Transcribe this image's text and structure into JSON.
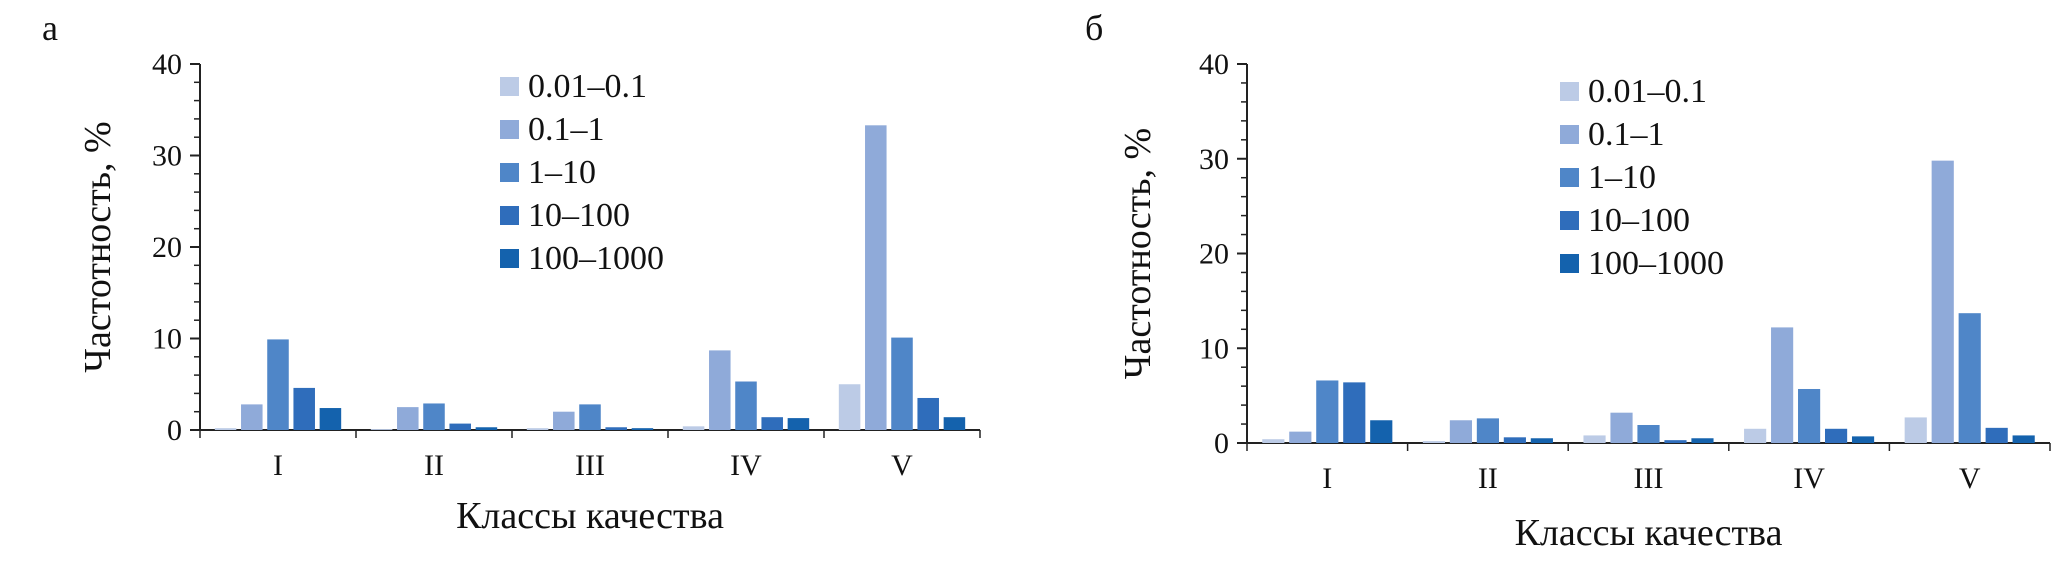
{
  "figure": {
    "colors": {
      "0.01–0.1": "#bccbe6",
      "0.1–1": "#8faad9",
      "1–10": "#4f86c8",
      "10–100": "#2f6dbb",
      "100–1000": "#1462ad",
      "axis": "#222222"
    }
  },
  "chart_data": [
    {
      "panel_label": "а",
      "type": "bar",
      "categories": [
        "I",
        "II",
        "III",
        "IV",
        "V"
      ],
      "xlabel": "Классы качества",
      "ylabel": "Частотность, %",
      "ylim": [
        0,
        40
      ],
      "yticks": [
        "0",
        "10",
        "20",
        "30",
        "40"
      ],
      "legend_placement": "top-center",
      "series": [
        {
          "name": "0.01–0.1",
          "values": [
            0.2,
            0.1,
            0.2,
            0.4,
            5.0
          ]
        },
        {
          "name": "0.1–1",
          "values": [
            2.8,
            2.5,
            2.0,
            8.7,
            33.3
          ]
        },
        {
          "name": "1–10",
          "values": [
            9.9,
            2.9,
            2.8,
            5.3,
            10.1
          ]
        },
        {
          "name": "10–100",
          "values": [
            4.6,
            0.7,
            0.3,
            1.4,
            3.5
          ]
        },
        {
          "name": "100–1000",
          "values": [
            2.4,
            0.3,
            0.2,
            1.3,
            1.4
          ]
        }
      ]
    },
    {
      "panel_label": "б",
      "type": "bar",
      "categories": [
        "I",
        "II",
        "III",
        "IV",
        "V"
      ],
      "xlabel": "Классы качества",
      "ylabel": "Частотность, %",
      "ylim": [
        0,
        40
      ],
      "yticks": [
        "0",
        "10",
        "20",
        "30",
        "40"
      ],
      "legend_placement": "top-center",
      "series": [
        {
          "name": "0.01–0.1",
          "values": [
            0.4,
            0.2,
            0.8,
            1.5,
            2.7
          ]
        },
        {
          "name": "0.1–1",
          "values": [
            1.2,
            2.4,
            3.2,
            12.2,
            29.8
          ]
        },
        {
          "name": "1–10",
          "values": [
            6.6,
            2.6,
            1.9,
            5.7,
            13.7
          ]
        },
        {
          "name": "10–100",
          "values": [
            6.4,
            0.6,
            0.3,
            1.5,
            1.6
          ]
        },
        {
          "name": "100–1000",
          "values": [
            2.4,
            0.5,
            0.5,
            0.7,
            0.8
          ]
        }
      ]
    }
  ]
}
